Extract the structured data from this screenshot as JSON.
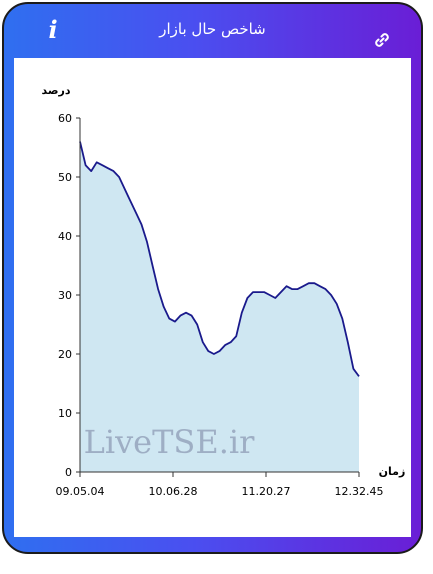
{
  "header": {
    "title": "شاخص حال بازار",
    "info_label": "i"
  },
  "colors": {
    "header_gradient_start": "#2f6ff0",
    "header_gradient_end": "#6a1ed6",
    "line": "#1a1a8c",
    "area": "#cfe7f2"
  },
  "icons": {
    "info": "info-icon",
    "link": "link-icon"
  },
  "watermark": "LiveTSE.ir",
  "chart_data": {
    "type": "area",
    "ylabel": "درصد",
    "xlabel": "زمان",
    "ylim": [
      0,
      60
    ],
    "yticks": [
      0,
      10,
      20,
      30,
      40,
      50,
      60
    ],
    "xtick_labels": [
      "09.05.04",
      "10.06.28",
      "11.20.27",
      "12.32.45"
    ],
    "grid": false,
    "series": [
      {
        "values": [
          56,
          52,
          51,
          52.5,
          52,
          51.5,
          51,
          50,
          48,
          46,
          44,
          42,
          39,
          35,
          31,
          28,
          26,
          25.5,
          26.5,
          27,
          26.5,
          25,
          22,
          20.5,
          20,
          20.5,
          21.5,
          22,
          23,
          27,
          29.5,
          30.5,
          30.5,
          30.5,
          30,
          29.5,
          30.5,
          31.5,
          31,
          31,
          31.5,
          32,
          32,
          31.5,
          31,
          30,
          28.5,
          26,
          22,
          17.5,
          16.2
        ]
      }
    ]
  }
}
